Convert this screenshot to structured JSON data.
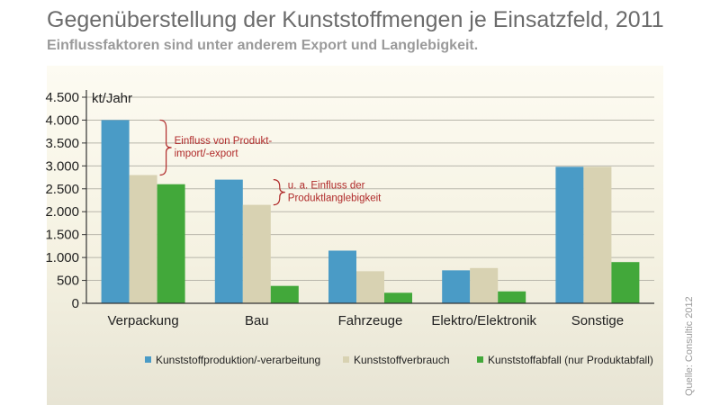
{
  "title": "Gegenüberstellung der Kunststoffmengen je Einsatzfeld, 2011",
  "subtitle": "Einflussfaktoren sind unter anderem Export und Langlebigkeit.",
  "source": "Quelle: Consultic 2012",
  "chart_data": {
    "type": "bar",
    "categories": [
      "Verpackung",
      "Bau",
      "Fahrzeuge",
      "Elektro/Elektronik",
      "Sonstige"
    ],
    "series": [
      {
        "name": "Kunststoffproduktion/-verarbeitung",
        "color": "#4a9bc6",
        "values": [
          4000,
          2700,
          1150,
          720,
          2980
        ]
      },
      {
        "name": "Kunststoffverbrauch",
        "color": "#d8d2b2",
        "values": [
          2800,
          2150,
          700,
          770,
          2980
        ]
      },
      {
        "name": "Kunststoffabfall (nur Produktabfall)",
        "color": "#42a83a",
        "values": [
          2600,
          380,
          230,
          260,
          900
        ]
      }
    ],
    "ylabel": "kt/Jahr",
    "ylim": [
      0,
      4500
    ],
    "yticks": [
      0,
      500,
      1000,
      1500,
      2000,
      2500,
      3000,
      3500,
      4000,
      4500
    ],
    "ytick_labels": [
      "0",
      "500",
      "1.000",
      "1.500",
      "2.000",
      "2.500",
      "3.000",
      "3.500",
      "4.000",
      "4.500"
    ],
    "grid": true,
    "legend_position": "bottom",
    "annotations": [
      {
        "lines": [
          "Einfluss von Produkt-",
          "import/-export"
        ],
        "category": "Verpackung",
        "color": "#b02a2a"
      },
      {
        "lines": [
          "u. a. Einfluss der",
          "Produktlanglebigkeit"
        ],
        "category": "Bau",
        "color": "#b02a2a"
      }
    ]
  }
}
